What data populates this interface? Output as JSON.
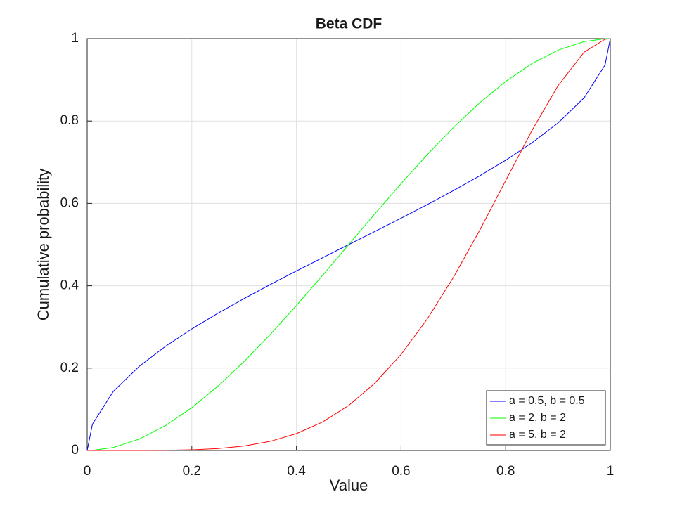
{
  "chart_data": {
    "type": "line",
    "title": "Beta CDF",
    "xlabel": "Value",
    "ylabel": "Cumulative probability",
    "x": [
      0,
      0.01,
      0.05,
      0.1,
      0.15,
      0.2,
      0.25,
      0.3,
      0.35,
      0.4,
      0.45,
      0.5,
      0.55,
      0.6,
      0.65,
      0.7,
      0.75,
      0.8,
      0.85,
      0.9,
      0.95,
      0.99,
      1
    ],
    "series": [
      {
        "name": "a = 0.5, b = 0.5",
        "color": "#0000ff",
        "values": [
          0,
          0.0638,
          0.1436,
          0.2048,
          0.2532,
          0.2952,
          0.3333,
          0.369,
          0.403,
          0.4359,
          0.4681,
          0.5,
          0.5319,
          0.5641,
          0.597,
          0.631,
          0.6667,
          0.7048,
          0.7468,
          0.7952,
          0.8564,
          0.9362,
          1
        ]
      },
      {
        "name": "a = 2, b = 2",
        "color": "#00ff00",
        "values": [
          0,
          0.0003,
          0.00725,
          0.028,
          0.06075,
          0.104,
          0.15625,
          0.216,
          0.28175,
          0.352,
          0.42525,
          0.5,
          0.57475,
          0.648,
          0.71825,
          0.784,
          0.84375,
          0.896,
          0.93925,
          0.972,
          0.99275,
          0.9997,
          1
        ]
      },
      {
        "name": "a = 5, b = 2",
        "color": "#ff0000",
        "values": [
          0,
          0,
          0,
          5.5e-05,
          0.0004,
          0.0016,
          0.00464,
          0.01094,
          0.02232,
          0.04096,
          0.0692,
          0.1094,
          0.1636,
          0.2333,
          0.3191,
          0.4202,
          0.5339,
          0.6554,
          0.7765,
          0.8857,
          0.9672,
          0.9985,
          1
        ]
      }
    ],
    "xlim": [
      0,
      1
    ],
    "ylim": [
      0,
      1
    ],
    "xticks": [
      0,
      0.2,
      0.4,
      0.6,
      0.8,
      1
    ],
    "yticks": [
      0,
      0.2,
      0.4,
      0.6,
      0.8,
      1
    ],
    "grid": true,
    "legend": "southeast"
  }
}
